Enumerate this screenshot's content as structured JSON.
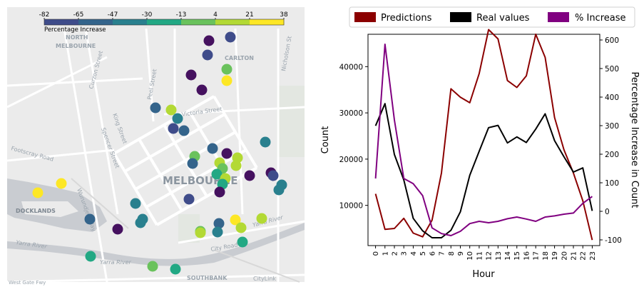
{
  "map": {
    "colorbar": {
      "ticks": [
        "-82",
        "-65",
        "-47",
        "-30",
        "-13",
        "4",
        "21",
        "38"
      ],
      "label": "Percentage Increase",
      "colors": [
        "#45115f",
        "#3f4c8a",
        "#34648b",
        "#29808e",
        "#22a884",
        "#6ac25c",
        "#b3d934",
        "#fde725"
      ]
    },
    "labels": [
      "NORTH",
      "MELBOURNE",
      "CARLTON",
      "MELBOURNE",
      "DOCKLANDS",
      "SOUTHBANK",
      "CityLink",
      "Yarra River",
      "Yarra River",
      "Victoria Street",
      "Peel Street",
      "King Street",
      "Spencer Street",
      "Curzon Street",
      "Footscray Road",
      "Wurundjeri Way",
      "Nicholson St",
      "City Road",
      "Yarra River",
      "West Gate Fwy"
    ],
    "points": [
      {
        "value": -82
      },
      {
        "value": -65
      },
      {
        "value": -65
      },
      {
        "value": -82
      },
      {
        "value": 4
      },
      {
        "value": -82
      },
      {
        "value": -47
      },
      {
        "value": 38
      },
      {
        "value": 21
      },
      {
        "value": -30
      },
      {
        "value": -65
      },
      {
        "value": -47
      },
      {
        "value": -30
      },
      {
        "value": -47
      },
      {
        "value": -82
      },
      {
        "value": 4
      },
      {
        "value": 21
      },
      {
        "value": 21
      },
      {
        "value": 4
      },
      {
        "value": -47
      },
      {
        "value": -13
      },
      {
        "value": 21
      },
      {
        "value": -13
      },
      {
        "value": 21
      },
      {
        "value": -82
      },
      {
        "value": -82
      },
      {
        "value": -65
      },
      {
        "value": -30
      },
      {
        "value": -82
      },
      {
        "value": -30
      },
      {
        "value": -65
      },
      {
        "value": -30
      },
      {
        "value": -30
      },
      {
        "value": 38
      },
      {
        "value": 38
      },
      {
        "value": -47
      },
      {
        "value": -82
      },
      {
        "value": -30
      },
      {
        "value": -47
      },
      {
        "value": 38
      },
      {
        "value": -30
      },
      {
        "value": 21
      },
      {
        "value": 4
      },
      {
        "value": 21
      },
      {
        "value": -13
      },
      {
        "value": 21
      },
      {
        "value": -13
      },
      {
        "value": 4
      },
      {
        "value": -13
      }
    ]
  },
  "chart_data": {
    "type": "line",
    "legend": [
      "Predictions",
      "Real values",
      "% Increase"
    ],
    "legend_position": "top",
    "xlabel": "Hour",
    "ylabel": "Count",
    "y2label": "Percentage Increase in Count",
    "x": [
      0,
      1,
      2,
      3,
      4,
      5,
      6,
      7,
      8,
      9,
      10,
      11,
      12,
      13,
      14,
      15,
      16,
      17,
      18,
      19,
      20,
      21,
      22,
      23
    ],
    "xlim": [
      -0.8,
      23.8
    ],
    "ylim": [
      1300,
      47000
    ],
    "y2lim": [
      -120,
      620
    ],
    "yticks": [
      10000,
      20000,
      30000,
      40000
    ],
    "y2ticks": [
      -100,
      0,
      100,
      200,
      300,
      400,
      500,
      600
    ],
    "series": [
      {
        "name": "Predictions",
        "axis": "left",
        "color": "#8b0000",
        "values": [
          12500,
          4800,
          5000,
          7200,
          4000,
          3200,
          6800,
          17000,
          35200,
          33400,
          32200,
          38500,
          48000,
          46000,
          37000,
          35500,
          38000,
          47000,
          42000,
          29000,
          22000,
          17000,
          11000,
          2500
        ]
      },
      {
        "name": "Real values",
        "axis": "left",
        "color": "#000000",
        "values": [
          27200,
          32000,
          21000,
          15500,
          7200,
          4500,
          3000,
          3000,
          4600,
          8600,
          16500,
          21700,
          26800,
          27300,
          23500,
          24800,
          23600,
          26500,
          29800,
          24000,
          20500,
          17200,
          18100,
          8800
        ]
      },
      {
        "name": "% Increase",
        "axis": "right",
        "color": "#800080",
        "values": [
          115,
          585,
          320,
          115,
          97,
          55,
          -58,
          -78,
          -85,
          -70,
          -43,
          -35,
          -40,
          -35,
          -26,
          -20,
          -27,
          -35,
          -20,
          -16,
          -10,
          -6,
          28,
          52
        ]
      }
    ]
  }
}
